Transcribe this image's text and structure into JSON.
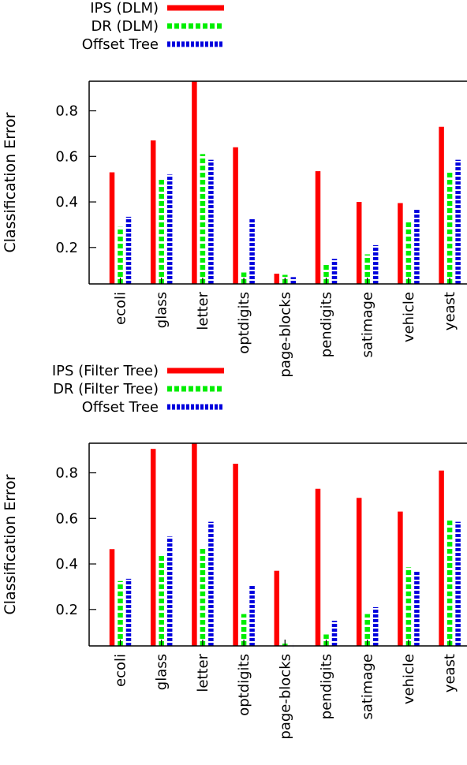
{
  "colors": {
    "ips": "#ff0000",
    "dr": "#00ee00",
    "offset": "#0000dd",
    "axis": "#000000"
  },
  "chart_data": [
    {
      "type": "bar",
      "ylabel": "Classification Error",
      "ylim": [
        0.04,
        0.93
      ],
      "yticks": [
        0.2,
        0.4,
        0.6,
        0.8
      ],
      "ytick_labels": [
        "0.2",
        "0.4",
        "0.6",
        "0.8"
      ],
      "legend_position": "top-left, above plot",
      "categories": [
        "ecoli",
        "glass",
        "letter",
        "optdigits",
        "page-blocks",
        "pendigits",
        "satimage",
        "vehicle",
        "yeast"
      ],
      "series": [
        {
          "name": "IPS (DLM)",
          "style": "solid",
          "color": "#ff0000",
          "values": [
            0.53,
            0.67,
            0.93,
            0.64,
            0.085,
            0.535,
            0.4,
            0.395,
            0.73
          ]
        },
        {
          "name": "DR (DLM)",
          "style": "dashed",
          "color": "#00ee00",
          "values": [
            0.29,
            0.5,
            0.61,
            0.09,
            0.08,
            0.125,
            0.17,
            0.32,
            0.53
          ]
        },
        {
          "name": "Offset Tree",
          "style": "dotted",
          "color": "#0000dd",
          "values": [
            0.335,
            0.52,
            0.585,
            0.33,
            0.07,
            0.15,
            0.21,
            0.37,
            0.585
          ]
        }
      ]
    },
    {
      "type": "bar",
      "ylabel": "Classification Error",
      "ylim": [
        0.04,
        0.93
      ],
      "yticks": [
        0.2,
        0.4,
        0.6,
        0.8
      ],
      "ytick_labels": [
        "0.2",
        "0.4",
        "0.6",
        "0.8"
      ],
      "legend_position": "top-left, above plot",
      "categories": [
        "ecoli",
        "glass",
        "letter",
        "optdigits",
        "page-blocks",
        "pendigits",
        "satimage",
        "vehicle",
        "yeast"
      ],
      "series": [
        {
          "name": "IPS (Filter Tree)",
          "style": "solid",
          "color": "#ff0000",
          "values": [
            0.465,
            0.905,
            0.93,
            0.84,
            0.37,
            0.73,
            0.69,
            0.63,
            0.81
          ]
        },
        {
          "name": "DR (Filter Tree)",
          "style": "dashed",
          "color": "#00ee00",
          "values": [
            0.325,
            0.445,
            0.47,
            0.18,
            0.05,
            0.09,
            0.18,
            0.385,
            0.59
          ]
        },
        {
          "name": "Offset Tree",
          "style": "dotted",
          "color": "#0000dd",
          "values": [
            0.335,
            0.52,
            0.585,
            0.305,
            0.04,
            0.15,
            0.21,
            0.37,
            0.585
          ]
        }
      ]
    }
  ]
}
